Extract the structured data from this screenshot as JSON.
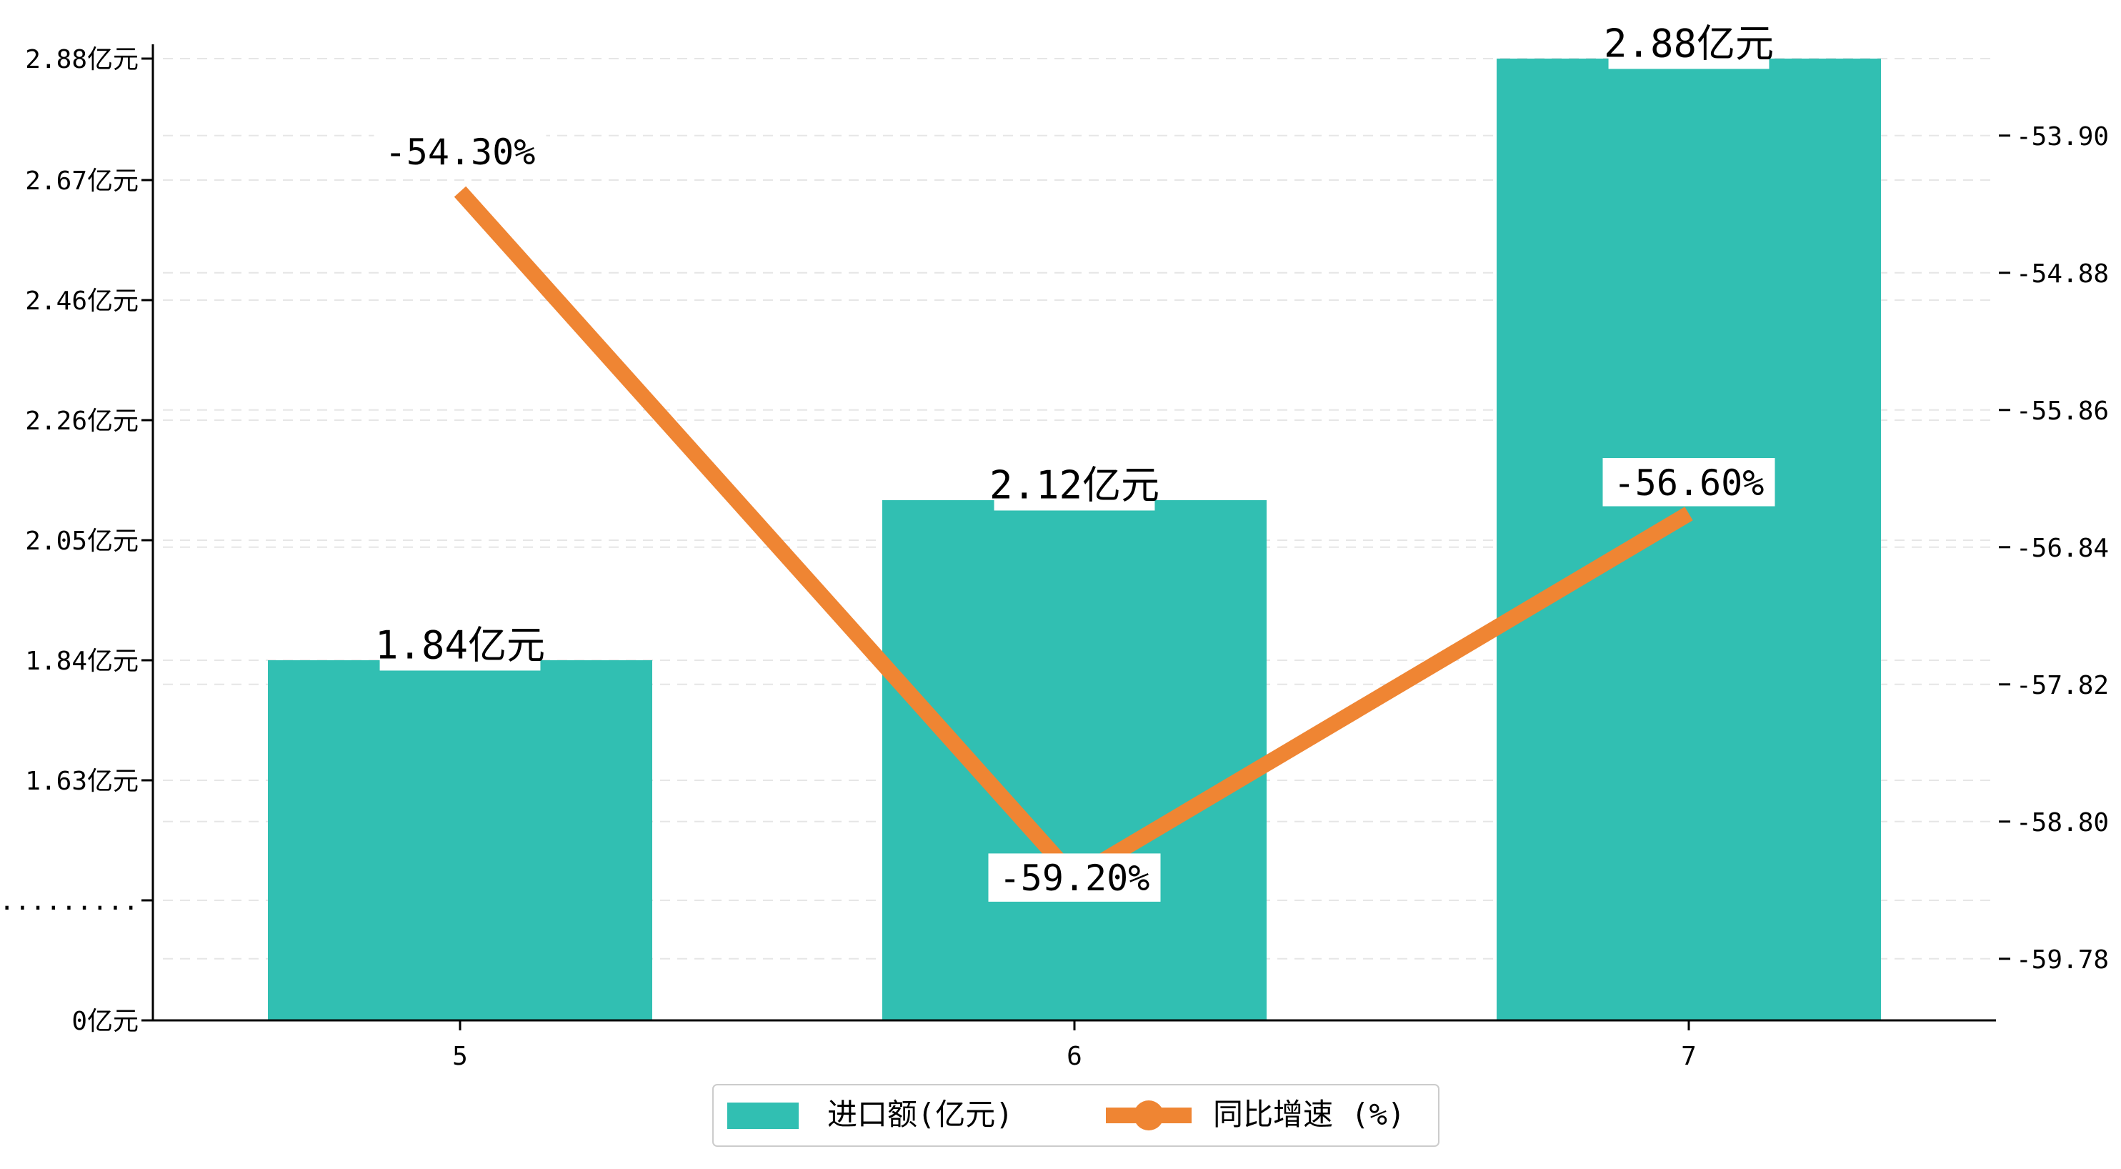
{
  "colors": {
    "bar": "#31BFB2",
    "line": "#EF8533",
    "axis": "#000000",
    "grid": "#e6e6e6",
    "label_bg": "#ffffff"
  },
  "chart_data": {
    "type": "bar",
    "categories": [
      "5",
      "6",
      "7"
    ],
    "series": [
      {
        "name": "进口额(亿元)",
        "type": "bar",
        "axis": "left",
        "values": [
          1.84,
          2.12,
          2.88
        ],
        "labels": [
          "1.84亿元",
          "2.12亿元",
          "2.88亿元"
        ]
      },
      {
        "name": "同比增速 (%)",
        "type": "line",
        "axis": "right",
        "values": [
          -54.3,
          -59.2,
          -56.6
        ],
        "labels": [
          "-54.30%",
          "-59.20%",
          "-56.60%"
        ]
      }
    ],
    "left_axis": {
      "ticks": [
        {
          "value": 0,
          "label": "0亿元"
        },
        {
          "value": 1.0,
          "label": "........."
        },
        {
          "value": 1.63,
          "label": "1.63亿元"
        },
        {
          "value": 1.84,
          "label": "1.84亿元"
        },
        {
          "value": 2.05,
          "label": "2.05亿元"
        },
        {
          "value": 2.26,
          "label": "2.26亿元"
        },
        {
          "value": 2.46,
          "label": "2.46亿元"
        },
        {
          "value": 2.67,
          "label": "2.67亿元"
        },
        {
          "value": 2.88,
          "label": "2.88亿元"
        }
      ]
    },
    "right_axis": {
      "ylim": [
        -60.22,
        -53.35
      ],
      "ticks": [
        {
          "value": -53.9,
          "label": "-53.90"
        },
        {
          "value": -54.88,
          "label": "-54.88"
        },
        {
          "value": -55.86,
          "label": "-55.86"
        },
        {
          "value": -56.84,
          "label": "-56.84"
        },
        {
          "value": -57.82,
          "label": "-57.82"
        },
        {
          "value": -58.8,
          "label": "-58.80"
        },
        {
          "value": -59.78,
          "label": "-59.78"
        }
      ]
    },
    "grid": true,
    "legend_position": "bottom-center"
  }
}
